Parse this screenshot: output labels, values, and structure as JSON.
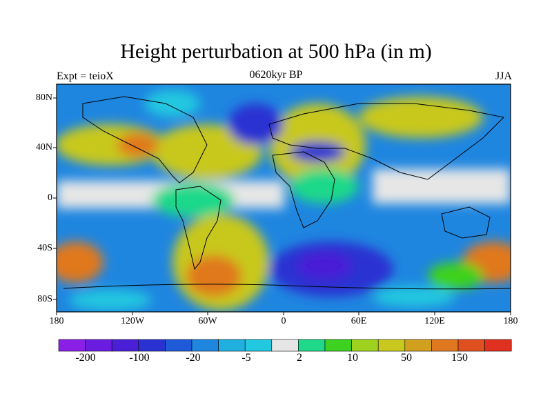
{
  "title": "Height perturbation at 500 hPa (in m)",
  "left_label": "Expt = teioX",
  "center_label": "0620kyr BP",
  "right_label": "JJA",
  "lat_labels": [
    "80N",
    "40N",
    "0",
    "40S",
    "80S"
  ],
  "lon_labels": [
    "180",
    "120W",
    "60W",
    "0",
    "60E",
    "120E",
    "180"
  ],
  "colorbar": {
    "colors": [
      "#8a1fe6",
      "#6a1de0",
      "#4a1fd6",
      "#2a33d2",
      "#1f5ad8",
      "#1f86e0",
      "#1fb0e0",
      "#22c8e0",
      "#e6e6e6",
      "#1fd88a",
      "#3cd21f",
      "#9ed21f",
      "#c8c81f",
      "#d2a01f",
      "#e0781f",
      "#e0501f",
      "#e0301f"
    ],
    "labels": [
      "-200",
      "-100",
      "-20",
      "-5",
      "2",
      "10",
      "50",
      "150"
    ]
  }
}
